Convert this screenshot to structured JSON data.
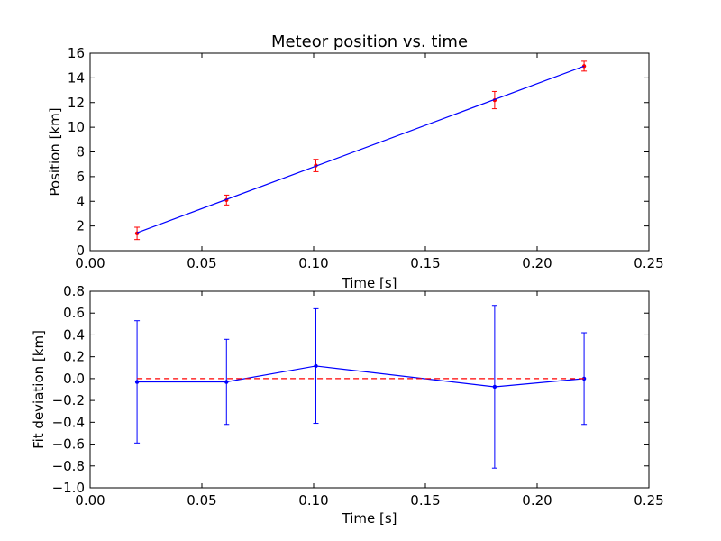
{
  "chart_data": [
    {
      "type": "line",
      "title": "Meteor position vs. time",
      "xlabel": "Time [s]",
      "ylabel": "Position [km]",
      "xlim": [
        0.0,
        0.25
      ],
      "ylim": [
        0,
        16
      ],
      "xticks": [
        "0.00",
        "0.05",
        "0.10",
        "0.15",
        "0.20",
        "0.25"
      ],
      "yticks": [
        "0",
        "2",
        "4",
        "6",
        "8",
        "10",
        "12",
        "14",
        "16"
      ],
      "grid": false,
      "series": [
        {
          "style": "errorbar-points",
          "color": "#ff0000",
          "x": [
            0.021,
            0.061,
            0.101,
            0.181,
            0.221
          ],
          "y": [
            1.4,
            4.1,
            6.9,
            12.2,
            14.95
          ],
          "yerr": [
            0.5,
            0.4,
            0.5,
            0.7,
            0.4
          ]
        },
        {
          "style": "line",
          "color": "#0000ff",
          "x": [
            0.021,
            0.221
          ],
          "y": [
            1.45,
            14.95
          ]
        }
      ]
    },
    {
      "type": "line",
      "title": "",
      "xlabel": "Time [s]",
      "ylabel": "Fit deviation [km]",
      "xlim": [
        0.0,
        0.25
      ],
      "ylim": [
        -1.0,
        0.8
      ],
      "xticks": [
        "0.00",
        "0.05",
        "0.10",
        "0.15",
        "0.20",
        "0.25"
      ],
      "yticks": [
        "0.8",
        "0.6",
        "0.4",
        "0.2",
        "0.0",
        "−0.2",
        "−0.4",
        "−0.6",
        "−0.8",
        "−1.0"
      ],
      "grid": false,
      "series": [
        {
          "style": "line-errorbar",
          "color": "#0000ff",
          "x": [
            0.021,
            0.061,
            0.101,
            0.181,
            0.221
          ],
          "y": [
            -0.03,
            -0.03,
            0.115,
            -0.075,
            0.0
          ],
          "yerr": [
            0.56,
            0.39,
            0.525,
            0.745,
            0.42
          ]
        },
        {
          "style": "dashed",
          "color": "#ff0000",
          "x": [
            0.021,
            0.221
          ],
          "y": [
            0.0,
            0.0
          ]
        }
      ]
    }
  ]
}
